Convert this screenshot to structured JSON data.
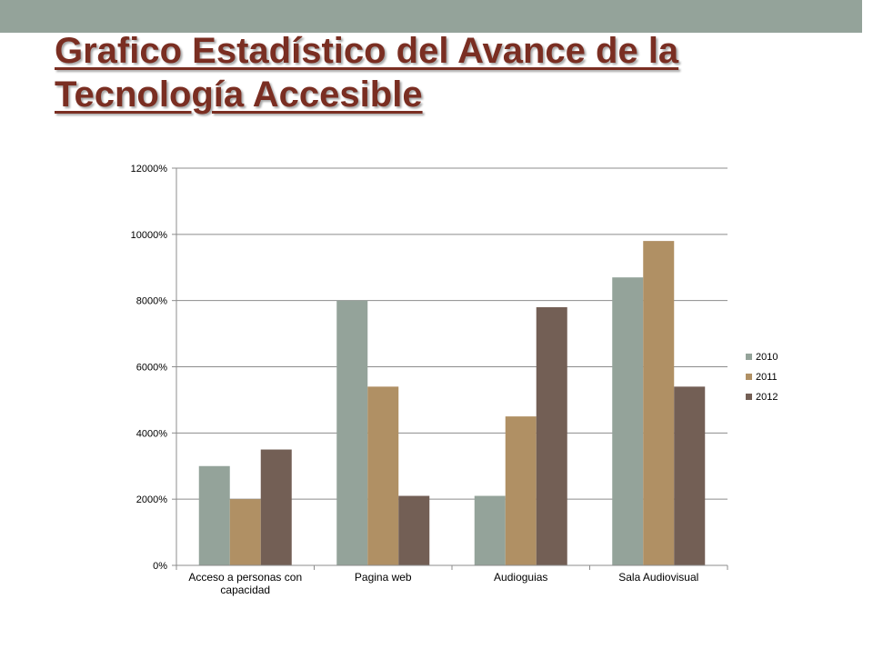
{
  "slide": {
    "title_line1": "Grafico Estadístico del Avance de la",
    "title_line2": "Tecnología Accesible",
    "title_color": "#7a2e22",
    "bar_color": "#94a39a"
  },
  "chart_data": {
    "type": "bar",
    "categories": [
      [
        "Acceso a personas con",
        "capacidad"
      ],
      [
        "Pagina web"
      ],
      [
        "Audioguias"
      ],
      [
        "Sala Audiovisual"
      ]
    ],
    "series": [
      {
        "name": "2010",
        "color": "#94a39a",
        "values": [
          3000,
          8000,
          2100,
          8700
        ]
      },
      {
        "name": "2011",
        "color": "#b09064",
        "values": [
          2000,
          5400,
          4500,
          9800
        ]
      },
      {
        "name": "2012",
        "color": "#735f55",
        "values": [
          3500,
          2100,
          7800,
          5400
        ]
      }
    ],
    "ylim": [
      0,
      12000
    ],
    "yticks": [
      0,
      2000,
      4000,
      6000,
      8000,
      10000,
      12000
    ],
    "ytick_labels": [
      "0%",
      "2000%",
      "4000%",
      "6000%",
      "8000%",
      "10000%",
      "12000%"
    ],
    "grid": true,
    "legend_position": "right"
  }
}
